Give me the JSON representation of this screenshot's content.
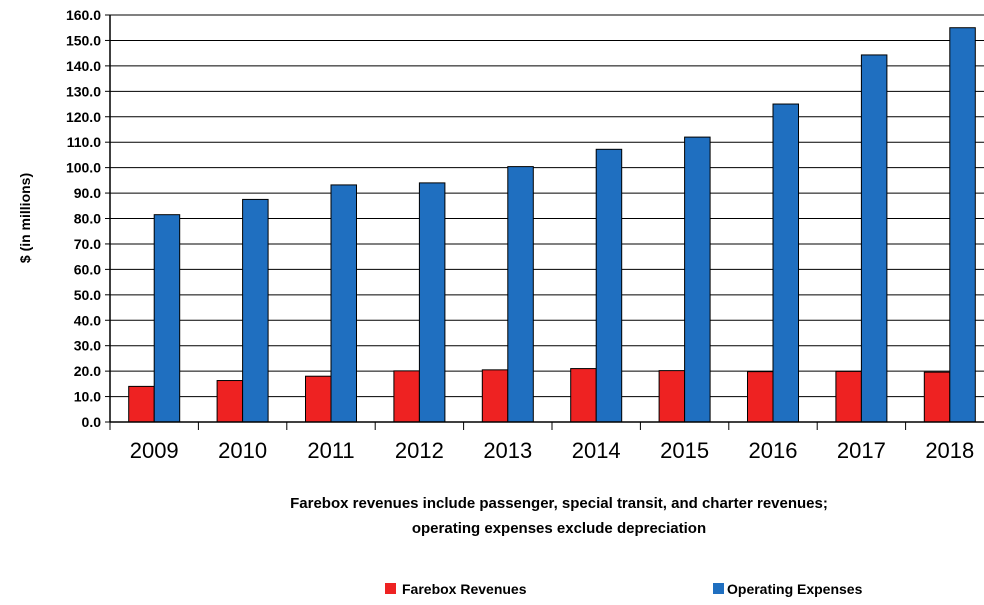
{
  "chart_data": {
    "type": "bar",
    "categories": [
      "2009",
      "2010",
      "2011",
      "2012",
      "2013",
      "2014",
      "2015",
      "2016",
      "2017",
      "2018"
    ],
    "series": [
      {
        "name": "Farebox Revenues",
        "color": "#ee2222",
        "values": [
          14.0,
          16.3,
          18.0,
          20.1,
          20.5,
          21.0,
          20.2,
          19.8,
          19.9,
          19.6
        ]
      },
      {
        "name": "Operating Expenses",
        "color": "#1f6fc0",
        "values": [
          81.5,
          87.5,
          93.2,
          94.0,
          100.4,
          107.2,
          112.0,
          125.0,
          144.3,
          155.0
        ]
      }
    ],
    "ylabel": "$ (in millions)",
    "xlabel": [
      "Farebox revenues include passenger, special transit, and charter revenues;",
      "operating expenses exclude depreciation"
    ],
    "ylim": [
      0,
      160
    ],
    "ytick_step": 10,
    "ytick_labels": [
      "0.0",
      "10.0",
      "20.0",
      "30.0",
      "40.0",
      "50.0",
      "60.0",
      "70.0",
      "80.0",
      "90.0",
      "100.0",
      "110.0",
      "120.0",
      "130.0",
      "140.0",
      "150.0",
      "160.0"
    ],
    "grid": true,
    "legend": "bottom"
  }
}
